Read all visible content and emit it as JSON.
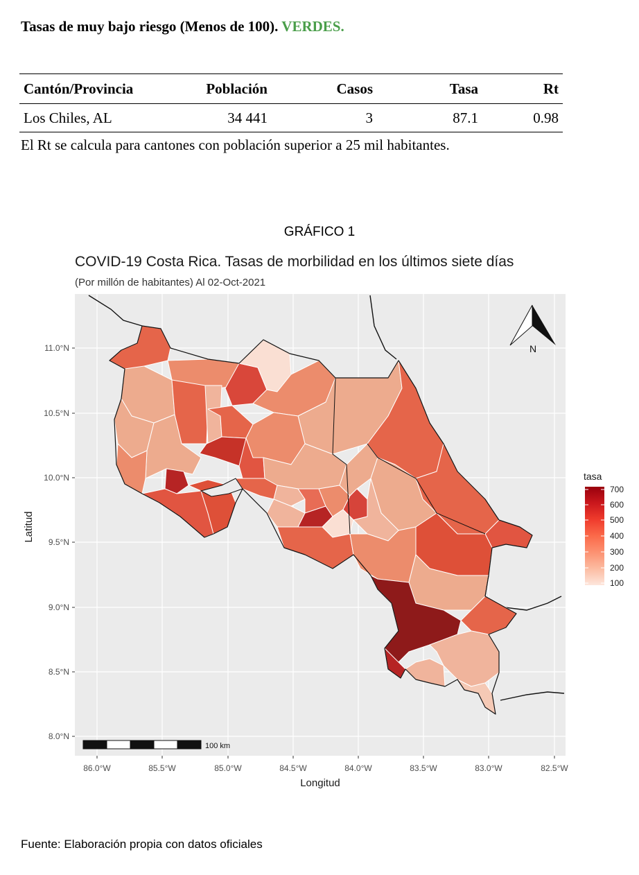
{
  "section": {
    "title": "Tasas de muy bajo riesgo (Menos de 100).",
    "highlight": "VERDES.",
    "highlight_color": "#4a9e4a"
  },
  "table": {
    "headers": [
      "Cantón/Provincia",
      "Población",
      "Casos",
      "Tasa",
      "Rt"
    ],
    "rows": [
      [
        "Los Chiles, AL",
        "34 441",
        "3",
        "87.1",
        "0.98"
      ]
    ]
  },
  "table_note": "El Rt se calcula para cantones con población superior a 25 mil habitantes.",
  "figure_label": "GRÁFICO 1",
  "chart": {
    "title": "COVID-19 Costa Rica. Tasas de morbilidad en los últimos siete días",
    "subtitle": "(Por millón de habitantes) Al 02-Oct-2021",
    "xlabel": "Longitud",
    "ylabel": "Latitud",
    "legend_title": "tasa",
    "north_label": "N",
    "scale_label": "100 km"
  },
  "chart_data": {
    "type": "choropleth map",
    "x_ticks": [
      "86.0°W",
      "85.5°W",
      "85.0°W",
      "84.5°W",
      "84.0°W",
      "83.5°W",
      "83.0°W",
      "82.5°W"
    ],
    "y_ticks": [
      "11.0°N",
      "10.5°N",
      "10.0°N",
      "9.5°N",
      "9.0°N",
      "8.5°N",
      "8.0°N"
    ],
    "legend_values": [
      700,
      600,
      500,
      400,
      300,
      200,
      100
    ],
    "color_scale": [
      "#fde6dc",
      "#fcbba1",
      "#fc9272",
      "#fb6a4a",
      "#ef3b2c",
      "#cb181d",
      "#99000d"
    ],
    "grid": true,
    "legend_position": "right"
  },
  "source_note": "Fuente: Elaboración propia con datos oficiales"
}
